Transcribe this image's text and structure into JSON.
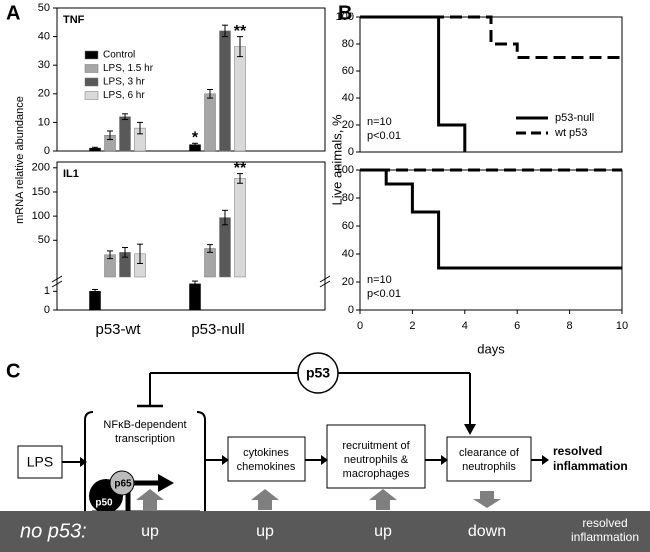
{
  "panel_labels": [
    "A",
    "B",
    "C"
  ],
  "chart_data": [
    {
      "type": "bar",
      "title": "TNF",
      "ylabel": "mRNA relative abundance",
      "ylim": [
        0,
        50
      ],
      "yticks": [
        0,
        10,
        20,
        30,
        40,
        50
      ],
      "series": [
        {
          "name": "Control",
          "color": "#000000",
          "values": [
            1,
            2.2
          ],
          "errors": [
            0.3,
            0.5
          ]
        },
        {
          "name": "LPS, 1.5 hr",
          "color": "#a6a6a6",
          "values": [
            5.5,
            20
          ],
          "errors": [
            1.5,
            1.5
          ]
        },
        {
          "name": "LPS, 3 hr",
          "color": "#595959",
          "values": [
            12,
            42
          ],
          "errors": [
            1,
            2
          ]
        },
        {
          "name": "LPS, 6 hr",
          "color": "#d9d9d9",
          "values": [
            8,
            36.5
          ],
          "errors": [
            2,
            3.5
          ]
        }
      ],
      "annotations": [
        "*",
        "**"
      ]
    },
    {
      "type": "bar",
      "title": "IL1",
      "categories": [
        "p53-wt",
        "p53-null"
      ],
      "segments": [
        {
          "ylim": [
            0,
            1.5
          ],
          "yticks": [
            0,
            1
          ]
        },
        {
          "ylim": [
            -26,
            212
          ],
          "yticks": [
            50,
            100,
            150,
            200
          ]
        }
      ],
      "series": [
        {
          "color": "#000000",
          "values": [
            1,
            1.4
          ],
          "errors": [
            0.1,
            0.15
          ]
        },
        {
          "color": "#a6a6a6",
          "values": [
            20,
            33
          ],
          "errors": [
            8,
            8
          ]
        },
        {
          "color": "#595959",
          "values": [
            25,
            97
          ],
          "errors": [
            10,
            15
          ]
        },
        {
          "color": "#d9d9d9",
          "values": [
            22,
            178
          ],
          "errors": [
            20,
            10
          ]
        }
      ],
      "annotations": [
        "**"
      ]
    },
    {
      "type": "line",
      "ylabel": "Live animals, %",
      "xlim": [
        0,
        10
      ],
      "ylim": [
        0,
        100
      ],
      "yticks": [
        0,
        20,
        40,
        60,
        80,
        100
      ],
      "series": [
        {
          "name": "p53-null",
          "color": "#000000",
          "line_style": "solid",
          "x": [
            0,
            3,
            3,
            4,
            4
          ],
          "values": [
            100,
            100,
            20,
            20,
            0
          ]
        },
        {
          "name": "wt p53",
          "color": "#000000",
          "line_style": "dashed",
          "x": [
            0,
            5,
            5,
            6,
            6,
            10
          ],
          "values": [
            100,
            100,
            80,
            80,
            70,
            70
          ]
        }
      ],
      "annotations": [
        "n=10",
        "p<0.01"
      ]
    },
    {
      "type": "line",
      "xlabel": "days",
      "xlim": [
        0,
        10
      ],
      "xticks": [
        0,
        2,
        4,
        6,
        8,
        10
      ],
      "ylim": [
        0,
        100
      ],
      "yticks": [
        0,
        20,
        40,
        60,
        80,
        100
      ],
      "series": [
        {
          "color": "#000000",
          "line_style": "solid",
          "x": [
            0,
            1,
            1,
            2,
            2,
            3,
            3,
            10
          ],
          "values": [
            100,
            100,
            90,
            90,
            70,
            70,
            30,
            30
          ]
        },
        {
          "color": "#000000",
          "line_style": "dashed",
          "x": [
            0,
            10
          ],
          "values": [
            100,
            100
          ]
        }
      ],
      "annotations": [
        "n=10",
        "p<0.01"
      ]
    }
  ],
  "diagram": {
    "regulator": "p53",
    "nfkb": [
      "NFκB-dependent",
      "transcription"
    ],
    "input": "LPS",
    "p65": "p65",
    "p50": "p50",
    "steps": [
      [
        "cytokines",
        "chemokines"
      ],
      [
        "recruitment of",
        "neutrophils &",
        "macrophages"
      ],
      [
        "clearance of",
        "neutrophils"
      ]
    ],
    "outcome": [
      "resolved",
      "inflammation"
    ],
    "bar": {
      "label": "no p53:",
      "effects": [
        "up",
        "up",
        "up",
        "down"
      ],
      "outcome": [
        "resolved",
        "inflammation"
      ]
    }
  }
}
